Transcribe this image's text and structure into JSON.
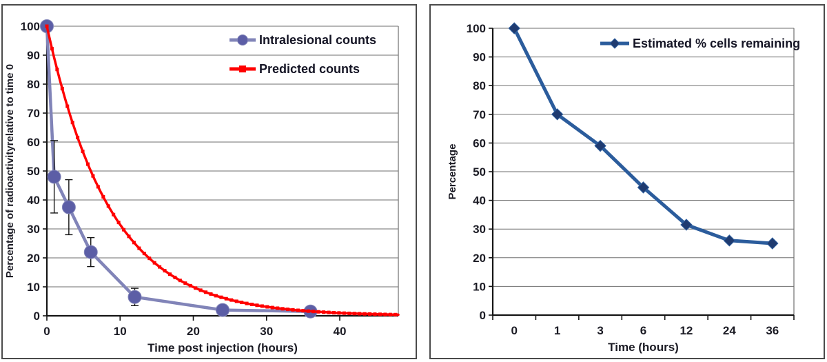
{
  "style": {
    "background": "#FFFFFF",
    "panel_border_color": "#4A4A4A",
    "grid_color": "#6E6E6E",
    "axis_color": "#141414",
    "text_color": "#1B1B24",
    "error_bar_color": "#111111"
  },
  "chart_data": [
    {
      "type": "line",
      "title": "",
      "xlabel": "Time post injection (hours)",
      "ylabel": "Percentage of radioactivityrelative to time 0",
      "xlim": [
        0,
        48
      ],
      "ylim": [
        0,
        100
      ],
      "x_ticks": [
        0,
        10,
        20,
        30,
        40
      ],
      "y_tick_step": 10,
      "grid": true,
      "legend_position": "top-right-inside",
      "series": [
        {
          "name": "Intralesional counts",
          "marker": "circle",
          "color": "#8184B8",
          "marker_color": "#5C5EA6",
          "x": [
            0,
            1,
            3,
            6,
            12,
            24,
            36
          ],
          "y": [
            100,
            48,
            37.5,
            22,
            6.5,
            2,
            1.5
          ],
          "error_y": [
            0,
            12.5,
            9.5,
            5,
            3,
            0,
            0
          ]
        },
        {
          "name": "Predicted counts",
          "marker": "square",
          "color": "#FF0000",
          "marker_color": "#FF0000",
          "curve": {
            "kind": "exponential_decay",
            "initial_percent": 100,
            "half_life_hours": 6,
            "t_start": 0,
            "t_end": 48,
            "marker_step_hours": 0.7
          }
        }
      ]
    },
    {
      "type": "line",
      "title": "",
      "xlabel": "Time (hours)",
      "ylabel": "Percentage",
      "categories": [
        "0",
        "1",
        "3",
        "6",
        "12",
        "24",
        "36"
      ],
      "ylim": [
        0,
        100
      ],
      "y_tick_step": 10,
      "grid": true,
      "legend_position": "top-right-inside",
      "series": [
        {
          "name": "Estimated % cells remaining",
          "marker": "diamond",
          "color": "#2B5C9C",
          "marker_color": "#1F3B70",
          "values": [
            100,
            70,
            59,
            44.5,
            31.5,
            26,
            25
          ]
        }
      ]
    }
  ]
}
